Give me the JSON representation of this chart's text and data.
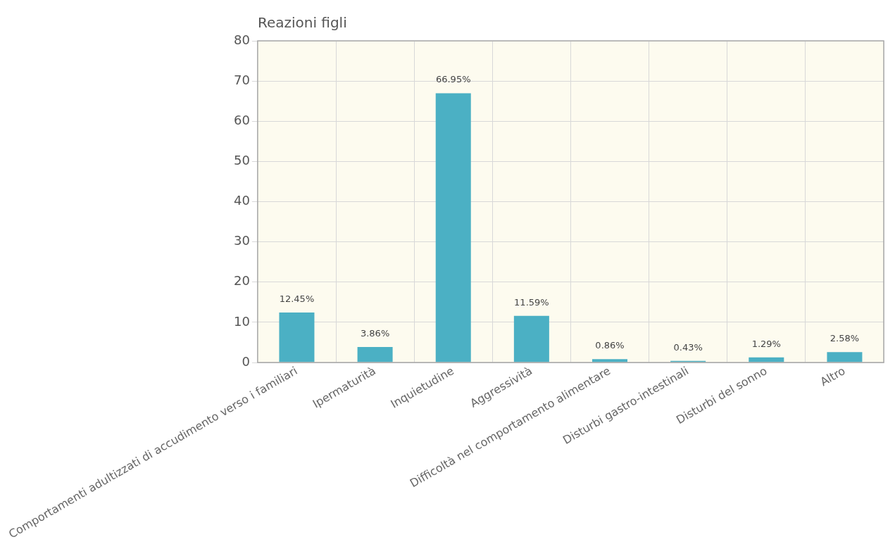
{
  "chart_data": {
    "type": "bar",
    "title": "Reazioni figli",
    "categories": [
      "Comportamenti adultizzati di accudimento verso i familiari",
      "Ipermaturità",
      "Inquietudine",
      "Aggressività",
      "Difficoltà nel comportamento alimentare",
      "Disturbi gastro-intestinali",
      "Disturbi del sonno",
      "Altro"
    ],
    "values": [
      12.45,
      3.86,
      66.95,
      11.59,
      0.86,
      0.43,
      1.29,
      2.58
    ],
    "value_labels": [
      "12.45%",
      "3.86%",
      "66.95%",
      "11.59%",
      "0.86%",
      "0.43%",
      "1.29%",
      "2.58%"
    ],
    "color": "#4bb0c4",
    "ylim": [
      0,
      80
    ],
    "yticks": [
      0,
      10,
      20,
      30,
      40,
      50,
      60,
      70,
      80
    ],
    "grid": true,
    "legend": false
  }
}
